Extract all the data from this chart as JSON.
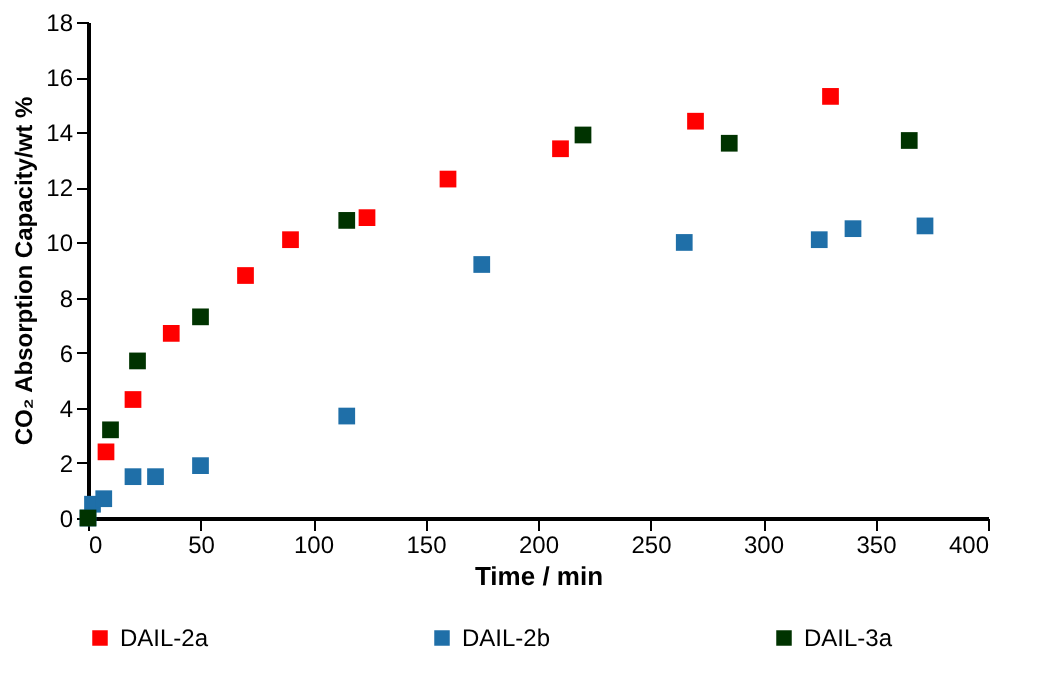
{
  "chart_data": {
    "type": "scatter",
    "xlabel": "Time / min",
    "ylabel": "CO₂ Absorption  Capacity/wt %",
    "xlim": [
      0,
      400
    ],
    "xticks": [
      0,
      50,
      100,
      150,
      200,
      250,
      300,
      350,
      400
    ],
    "ylim": [
      0,
      18
    ],
    "yticks": [
      0,
      2,
      4,
      6,
      8,
      10,
      12,
      14,
      16,
      18
    ],
    "grid": false,
    "legend": "bottom",
    "marker": "square",
    "series": [
      {
        "name": "DAIL-2a",
        "color": "#ff0000",
        "x": [
          8,
          20,
          37,
          70,
          90,
          124,
          160,
          210,
          270,
          330
        ],
        "values": [
          2.4,
          4.3,
          6.7,
          8.8,
          10.1,
          10.9,
          12.3,
          13.4,
          14.4,
          15.3
        ]
      },
      {
        "name": "DAIL-2b",
        "color": "#1f6fa8",
        "x": [
          0,
          2,
          7,
          20,
          30,
          50,
          115,
          175,
          265,
          325,
          340,
          372
        ],
        "values": [
          0,
          0.5,
          0.7,
          1.5,
          1.5,
          1.9,
          3.7,
          9.2,
          10.0,
          10.1,
          10.5,
          10.6
        ]
      },
      {
        "name": "DAIL-3a",
        "color": "#003300",
        "x": [
          0,
          10,
          22,
          50,
          115,
          220,
          285,
          365
        ],
        "values": [
          0,
          3.2,
          5.7,
          7.3,
          10.8,
          13.9,
          13.6,
          13.7
        ]
      }
    ]
  }
}
